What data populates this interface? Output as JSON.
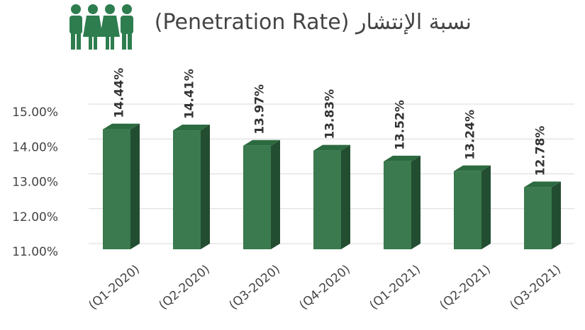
{
  "chart_data": {
    "type": "bar",
    "title": "نسبة الإنتشار (Penetration Rate)",
    "categories": [
      "(Q1-2020)",
      "(Q2-2020)",
      "(Q3-2020)",
      "(Q4-2020)",
      "(Q1-2021)",
      "(Q2-2021)",
      "(Q3-2021)"
    ],
    "values": [
      14.44,
      14.41,
      13.97,
      13.83,
      13.52,
      13.24,
      12.78
    ],
    "value_labels": [
      "14.44%",
      "14.41%",
      "13.97%",
      "13.83%",
      "13.52%",
      "13.24%",
      "12.78%"
    ],
    "color": "#3b7a4e",
    "ylim": [
      11,
      15
    ],
    "yticks": [
      {
        "value": 11,
        "label": "11.00%"
      },
      {
        "value": 12,
        "label": "12.00%"
      },
      {
        "value": 13,
        "label": "13.00%"
      },
      {
        "value": 14,
        "label": "14.00%"
      },
      {
        "value": 15,
        "label": "15.00%"
      }
    ],
    "grid": true
  }
}
